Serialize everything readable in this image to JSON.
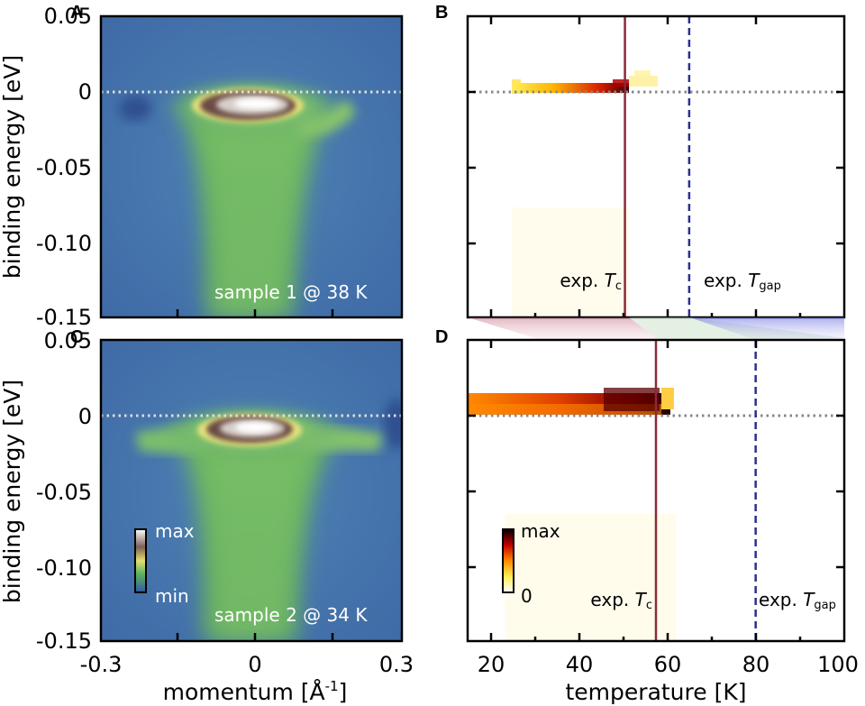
{
  "chart_data": [
    {
      "panel": "A",
      "type": "heatmap",
      "ylabel": "binding energy [eV]",
      "y_ticks": [
        "0.05",
        "0",
        "-0.05",
        "-0.10",
        "-0.15"
      ],
      "ylim": [
        -0.15,
        0.05
      ],
      "xlim": [
        -0.3,
        0.3
      ],
      "annotation": "sample 1 @ 38 K",
      "colormap": "blue-green-yellow-white"
    },
    {
      "panel": "B",
      "type": "heatmap",
      "xlim": [
        15,
        100
      ],
      "ylim": [
        -0.15,
        0.05
      ],
      "colormap": "white-yellow-red-black",
      "markers": [
        {
          "label_prefix": "exp. ",
          "label_italic": "T",
          "label_sub": "c",
          "x": 50.5,
          "color": "#8b2a3a",
          "style": "solid"
        },
        {
          "label_prefix": "exp. ",
          "label_italic": "T",
          "label_sub": "gap",
          "x": 65,
          "color": "#2b2f8f",
          "style": "dashed"
        }
      ]
    },
    {
      "panel": "C",
      "type": "heatmap",
      "ylabel": "binding energy [eV]",
      "y_ticks": [
        "0.05",
        "0",
        "-0.05",
        "-0.10",
        "-0.15"
      ],
      "x_ticks": [
        "-0.3",
        "0",
        "0.3"
      ],
      "xlabel_text": "momentum [Å",
      "xlabel_sup": "-1",
      "xlabel_end": "]",
      "ylim": [
        -0.15,
        0.05
      ],
      "xlim": [
        -0.3,
        0.3
      ],
      "annotation": "sample 2 @ 34 K",
      "colorbar": {
        "max_label": "max",
        "min_label": "min"
      }
    },
    {
      "panel": "D",
      "type": "heatmap",
      "xlabel": "temperature [K]",
      "x_ticks": [
        "20",
        "40",
        "60",
        "80",
        "100"
      ],
      "xlim": [
        15,
        100
      ],
      "ylim": [
        -0.15,
        0.05
      ],
      "colorbar": {
        "max_label": "max",
        "min_label": "0"
      },
      "markers": [
        {
          "label_prefix": "exp. ",
          "label_italic": "T",
          "label_sub": "c",
          "x": 57.5,
          "color": "#8b2a3a",
          "style": "solid"
        },
        {
          "label_prefix": "exp. ",
          "label_italic": "T",
          "label_sub": "gap",
          "x": 80,
          "color": "#2b2f8f",
          "style": "dashed"
        }
      ]
    }
  ],
  "colors": {
    "tc_line": "#8b2a3a",
    "tgap_line": "#2b2f8f",
    "fermi_dots_dark": "#888888",
    "fermi_dots_light": "#dddddd"
  }
}
